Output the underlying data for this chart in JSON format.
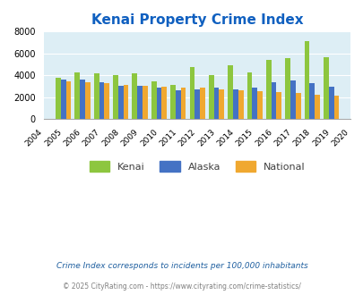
{
  "title": "Kenai Property Crime Index",
  "years": [
    2004,
    2005,
    2006,
    2007,
    2008,
    2009,
    2010,
    2011,
    2012,
    2013,
    2014,
    2015,
    2016,
    2017,
    2018,
    2019,
    2020
  ],
  "kenai": [
    null,
    3800,
    4300,
    4150,
    4000,
    4200,
    3450,
    3150,
    4750,
    4050,
    4950,
    4250,
    5400,
    5600,
    7100,
    5650,
    null
  ],
  "alaska": [
    null,
    3600,
    3600,
    3400,
    3000,
    3000,
    2850,
    2650,
    2700,
    2850,
    2750,
    2850,
    3350,
    3550,
    3300,
    2950,
    null
  ],
  "national": [
    null,
    3450,
    3350,
    3300,
    3150,
    3050,
    2950,
    2900,
    2900,
    2750,
    2650,
    2550,
    2500,
    2400,
    2250,
    2100,
    null
  ],
  "kenai_color": "#8dc63f",
  "alaska_color": "#4472c4",
  "national_color": "#f0a830",
  "bg_color": "#ddeef5",
  "ylim": [
    0,
    8000
  ],
  "yticks": [
    0,
    2000,
    4000,
    6000,
    8000
  ],
  "subtitle": "Crime Index corresponds to incidents per 100,000 inhabitants",
  "footer": "© 2025 CityRating.com - https://www.cityrating.com/crime-statistics/",
  "title_color": "#1060c0",
  "subtitle_color": "#2060a0",
  "footer_color": "#808080"
}
